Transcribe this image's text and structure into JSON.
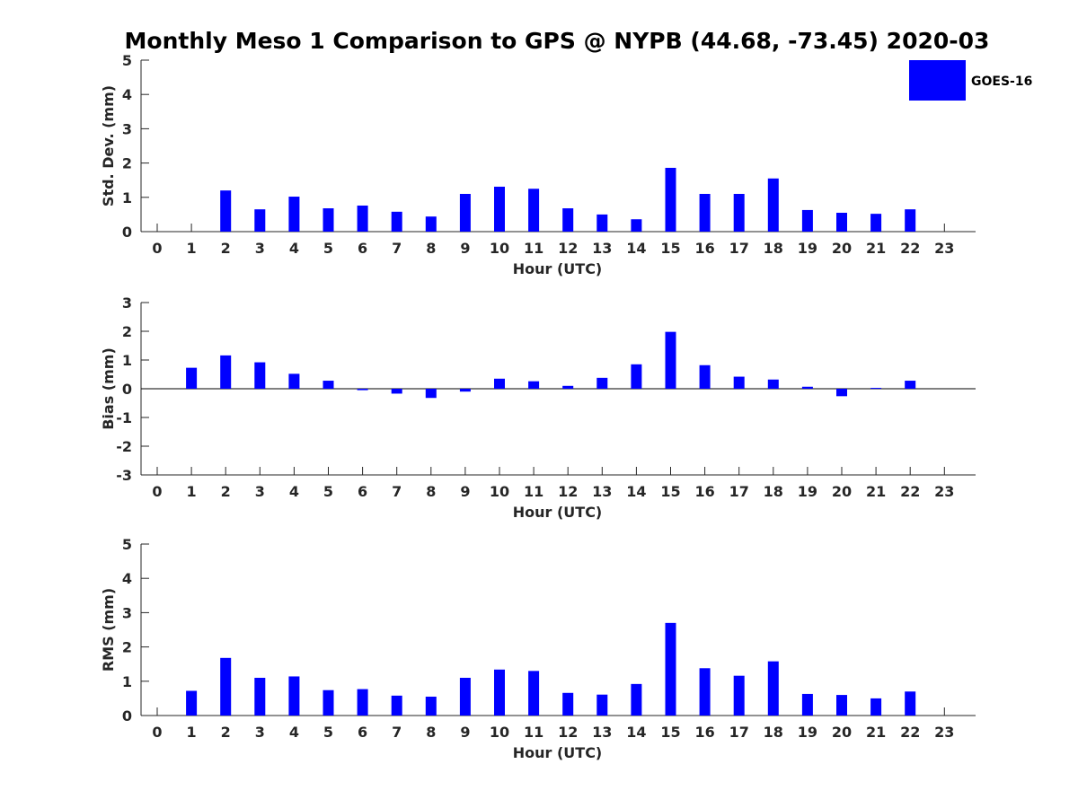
{
  "title": "Monthly Meso 1 Comparison to GPS @ NYPB (44.68, -73.45) 2020-03",
  "legend": {
    "label": "GOES-16",
    "position": "top-right",
    "color": "#0000ff"
  },
  "chart_data": [
    {
      "type": "bar",
      "ylabel": "Std. Dev. (mm)",
      "xlabel": "Hour (UTC)",
      "ylim": [
        0,
        5
      ],
      "yticks": [
        "0",
        "1",
        "2",
        "3",
        "4",
        "5"
      ],
      "categories": [
        "0",
        "1",
        "2",
        "3",
        "4",
        "5",
        "6",
        "7",
        "8",
        "9",
        "10",
        "11",
        "12",
        "13",
        "14",
        "15",
        "16",
        "17",
        "18",
        "19",
        "20",
        "21",
        "22",
        "23"
      ],
      "series": [
        {
          "name": "GOES-16",
          "values": [
            null,
            null,
            1.2,
            0.65,
            1.02,
            0.68,
            0.76,
            0.58,
            0.44,
            1.1,
            1.31,
            1.25,
            0.68,
            0.5,
            0.36,
            1.86,
            1.1,
            1.1,
            1.55,
            0.63,
            0.55,
            0.52,
            0.65,
            null
          ]
        }
      ],
      "grid": false
    },
    {
      "type": "bar",
      "ylabel": "Bias (mm)",
      "xlabel": "Hour (UTC)",
      "ylim": [
        -3,
        3
      ],
      "yticks": [
        "-3",
        "-2",
        "-1",
        "0",
        "1",
        "2",
        "3"
      ],
      "categories": [
        "0",
        "1",
        "2",
        "3",
        "4",
        "5",
        "6",
        "7",
        "8",
        "9",
        "10",
        "11",
        "12",
        "13",
        "14",
        "15",
        "16",
        "17",
        "18",
        "19",
        "20",
        "21",
        "22",
        "23"
      ],
      "series": [
        {
          "name": "GOES-16",
          "values": [
            null,
            0.73,
            1.16,
            0.92,
            0.52,
            0.28,
            -0.05,
            -0.17,
            -0.32,
            -0.1,
            0.35,
            0.26,
            0.1,
            0.38,
            0.85,
            1.98,
            0.82,
            0.42,
            0.32,
            0.07,
            -0.26,
            0.03,
            0.28,
            null
          ]
        }
      ],
      "grid": false
    },
    {
      "type": "bar",
      "ylabel": "RMS (mm)",
      "xlabel": "Hour (UTC)",
      "ylim": [
        0,
        5
      ],
      "yticks": [
        "0",
        "1",
        "2",
        "3",
        "4",
        "5"
      ],
      "categories": [
        "0",
        "1",
        "2",
        "3",
        "4",
        "5",
        "6",
        "7",
        "8",
        "9",
        "10",
        "11",
        "12",
        "13",
        "14",
        "15",
        "16",
        "17",
        "18",
        "19",
        "20",
        "21",
        "22",
        "23"
      ],
      "series": [
        {
          "name": "GOES-16",
          "values": [
            null,
            0.72,
            1.68,
            1.1,
            1.14,
            0.74,
            0.77,
            0.58,
            0.55,
            1.1,
            1.34,
            1.3,
            0.66,
            0.61,
            0.92,
            2.7,
            1.38,
            1.16,
            1.58,
            0.63,
            0.6,
            0.5,
            0.7,
            null
          ]
        }
      ],
      "grid": false
    }
  ]
}
